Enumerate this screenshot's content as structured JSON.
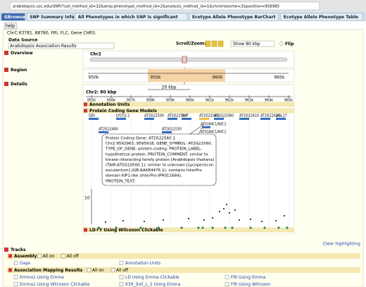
{
  "browser": {
    "url": "arabidopsis.usc.edu/SNP/?call_method_id=32&amp;phenotype_method_id=2&analysis_method_id=1&chromosome=2&position=958985"
  },
  "tabs": [
    "GBrowse",
    "SNP Summary Info",
    "All Phenotypes in which SNP is significant",
    "Ecotype Allele Phenotype BarChart",
    "Ecotype Allele Phenotype Table"
  ],
  "help": "help",
  "panel": {
    "header_line": "ChrC:63781..88780, FRI, FLC, Gene CHRS.",
    "data_source_label": "Data Source",
    "data_source": "Arabidopsis Association Results",
    "scroll_zoom": "Scroll/Zoom:",
    "zoom": "Show 80 kbp",
    "flip": "Flip"
  },
  "sections": {
    "overview": "Overview",
    "region": "Region",
    "details": "Details",
    "tracks": "Tracks"
  },
  "overview": {
    "chromosome": "Chr2"
  },
  "region": {
    "ticks": [
      "950k",
      "955k",
      "960k",
      "965k"
    ]
  },
  "details": {
    "scale": "20 kbp",
    "title": "Chr2: 80 kbp",
    "ticks": [
      "955k",
      "956k",
      "957k",
      "958k",
      "959k",
      "960k",
      "961k",
      "962k",
      "963k",
      "964k",
      "965k"
    ],
    "annotation_track": "Annotation Units",
    "gene_track": "Protein Coding Gene Models",
    "genes": [
      "GDI",
      "LYCO2.1",
      "AT2G22500",
      "AT2G22540",
      "SVP",
      "AT2G22560",
      "AT2G22580",
      "AT2G22610",
      "AT2G22620",
      "AGL17",
      "AT2G22480",
      "AT2G22530",
      "AT01NIC1/NIC2",
      "AT01NIC1/NIC2"
    ],
    "tooltip": [
      "Protein Coding Gene: AT2G22560.1",
      "Chr2:9592963..9595918, GENE_SYMBOL: AT2G22560,",
      "TYPE_OF_GENE: protein-coding, PROTEIN_LABEL:",
      "hypothetical protein, PROTEIN_COMMENT: similar to",
      "kinase interacting family protein [Arabidopsis thaliana]",
      "(TAIR:AT5G10500.1); similar to unknown [Lycopersicon",
      "esculentum] (GB:AAK84476.1); contains InterPro",
      "domain KIP1-like (InterPro:IPR011684),",
      "PROTEIN_TEXT:"
    ],
    "plot_label": "10",
    "ld_track": "LD+Y Using Wilcoxon Clickable",
    "clear": "Clear highlighting"
  },
  "tracks": {
    "all_on": "All on",
    "all_off": "All off",
    "groups": [
      {
        "name": "Assembly",
        "items": [
          "Gaps",
          "Annotation Units"
        ]
      },
      {
        "name": "Association Mapping Results",
        "items": [
          "Emma1 Using Emma",
          "LD Using Emma Clickable",
          "FRI Using Emma",
          "Emma1 Using Wilcoxon Clickable",
          "K39_Soil_L_2 Using Emma",
          "FRI Using Wilcoxon"
        ]
      }
    ]
  }
}
